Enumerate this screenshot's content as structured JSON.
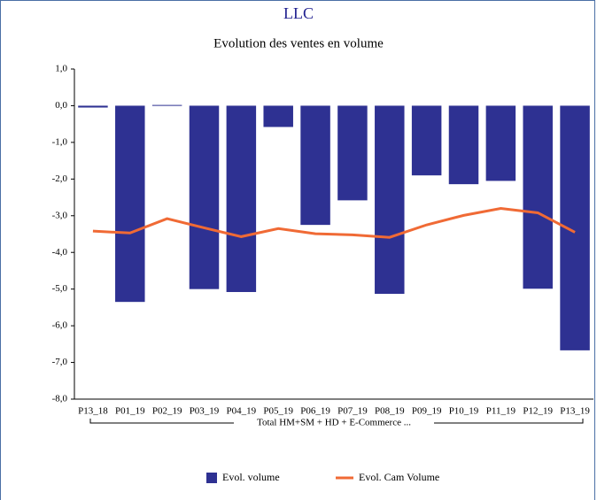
{
  "chart_data": {
    "type": "bar_line",
    "title": "LLC",
    "subtitle": "Evolution des ventes en volume",
    "categories": [
      "P13_18",
      "P01_19",
      "P02_19",
      "P03_19",
      "P04_19",
      "P05_19",
      "P06_19",
      "P07_19",
      "P08_19",
      "P09_19",
      "P10_19",
      "P11_19",
      "P12_19",
      "P13_19"
    ],
    "group_label": "Total HM+SM + HD + E-Commerce ...",
    "series": [
      {
        "name": "Evol. volume",
        "kind": "bar",
        "color": "#2e3192",
        "values": [
          -0.05,
          -5.35,
          0.02,
          -5.0,
          -5.08,
          -0.58,
          -3.25,
          -2.58,
          -5.13,
          -1.9,
          -2.14,
          -2.05,
          -4.99,
          -6.67
        ]
      },
      {
        "name": "Evol. Cam Volume",
        "kind": "line",
        "color": "#f06a35",
        "values": [
          -3.42,
          -3.47,
          -3.08,
          -3.33,
          -3.57,
          -3.35,
          -3.49,
          -3.52,
          -3.59,
          -3.25,
          -2.99,
          -2.8,
          -2.92,
          -3.45
        ]
      }
    ],
    "ylim": [
      -8,
      1
    ],
    "yticks": [
      {
        "value": -8,
        "label": "-8,0"
      },
      {
        "value": -7,
        "label": "-7,0"
      },
      {
        "value": -6,
        "label": "-6,0"
      },
      {
        "value": -5,
        "label": "-5,0"
      },
      {
        "value": -4,
        "label": "-4,0"
      },
      {
        "value": -3,
        "label": "-3,0"
      },
      {
        "value": -2,
        "label": "-2,0"
      },
      {
        "value": -1,
        "label": "-1,0"
      },
      {
        "value": 0,
        "label": "0,0"
      },
      {
        "value": 1,
        "label": "1,0"
      }
    ],
    "grid": false,
    "legend": "bottom"
  }
}
